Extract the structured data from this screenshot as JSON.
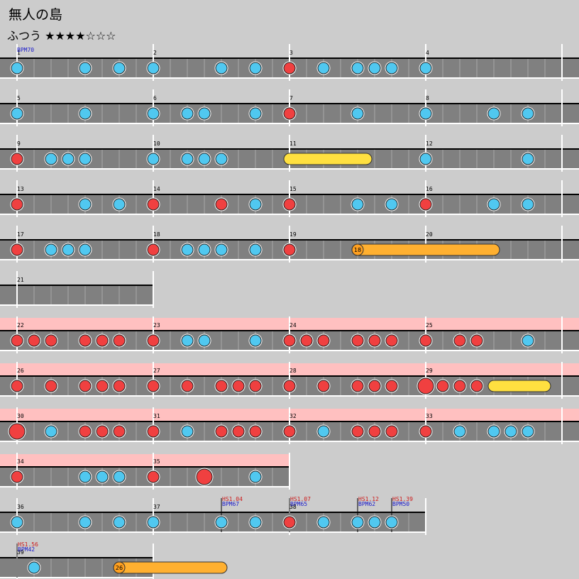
{
  "song": {
    "title": "無人の島",
    "difficulty": "ふつう",
    "stars_filled": 4,
    "stars_total": 7
  },
  "colors": {
    "background": "#cccccc",
    "lane": "#808080",
    "gogo_band": "#ffc0c0",
    "don": "#f04040",
    "ka": "#50c8f0",
    "drumroll": "#ffe040",
    "balloon": "#ffb030"
  },
  "rows": [
    {
      "measures": [
        "1",
        "2",
        "3",
        "4"
      ],
      "width": 4,
      "gogo": false,
      "notes": [
        {
          "b": 0,
          "t": "ka"
        },
        {
          "b": 4,
          "t": "ka"
        },
        {
          "b": 6,
          "t": "ka"
        },
        {
          "b": 8,
          "t": "ka"
        },
        {
          "b": 12,
          "t": "ka"
        },
        {
          "b": 14,
          "t": "ka"
        },
        {
          "b": 16,
          "t": "don"
        },
        {
          "b": 18,
          "t": "ka"
        },
        {
          "b": 20,
          "t": "ka"
        },
        {
          "b": 21,
          "t": "ka"
        },
        {
          "b": 22,
          "t": "ka"
        },
        {
          "b": 24,
          "t": "ka"
        }
      ]
    },
    {
      "measures": [
        "5",
        "6",
        "7",
        "8"
      ],
      "width": 4,
      "gogo": false,
      "notes": [
        {
          "b": 0,
          "t": "ka"
        },
        {
          "b": 4,
          "t": "ka"
        },
        {
          "b": 8,
          "t": "ka"
        },
        {
          "b": 10,
          "t": "ka"
        },
        {
          "b": 11,
          "t": "ka"
        },
        {
          "b": 14,
          "t": "ka"
        },
        {
          "b": 16,
          "t": "don"
        },
        {
          "b": 20,
          "t": "ka"
        },
        {
          "b": 24,
          "t": "ka"
        },
        {
          "b": 28,
          "t": "ka"
        },
        {
          "b": 30,
          "t": "ka"
        }
      ]
    },
    {
      "measures": [
        "9",
        "10",
        "11",
        "12"
      ],
      "width": 4,
      "gogo": false,
      "notes": [
        {
          "b": 0,
          "t": "don"
        },
        {
          "b": 2,
          "t": "ka"
        },
        {
          "b": 3,
          "t": "ka"
        },
        {
          "b": 4,
          "t": "ka"
        },
        {
          "b": 8,
          "t": "ka"
        },
        {
          "b": 10,
          "t": "ka"
        },
        {
          "b": 11,
          "t": "ka"
        },
        {
          "b": 12,
          "t": "ka"
        },
        {
          "b": 16,
          "end": 20.5,
          "t": "roll"
        },
        {
          "b": 24,
          "t": "ka"
        },
        {
          "b": 30,
          "t": "ka"
        }
      ]
    },
    {
      "measures": [
        "13",
        "14",
        "15",
        "16"
      ],
      "width": 4,
      "gogo": false,
      "notes": [
        {
          "b": 0,
          "t": "don"
        },
        {
          "b": 4,
          "t": "ka"
        },
        {
          "b": 6,
          "t": "ka"
        },
        {
          "b": 8,
          "t": "don"
        },
        {
          "b": 12,
          "t": "don"
        },
        {
          "b": 14,
          "t": "ka"
        },
        {
          "b": 16,
          "t": "don"
        },
        {
          "b": 20,
          "t": "ka"
        },
        {
          "b": 22,
          "t": "ka"
        },
        {
          "b": 24,
          "t": "don"
        },
        {
          "b": 28,
          "t": "ka"
        },
        {
          "b": 30,
          "t": "ka"
        }
      ]
    },
    {
      "measures": [
        "17",
        "18",
        "19",
        "20"
      ],
      "width": 4,
      "gogo": false,
      "notes": [
        {
          "b": 0,
          "t": "don"
        },
        {
          "b": 2,
          "t": "ka"
        },
        {
          "b": 3,
          "t": "ka"
        },
        {
          "b": 4,
          "t": "ka"
        },
        {
          "b": 8,
          "t": "don"
        },
        {
          "b": 10,
          "t": "ka"
        },
        {
          "b": 11,
          "t": "ka"
        },
        {
          "b": 12,
          "t": "ka"
        },
        {
          "b": 14,
          "t": "ka"
        },
        {
          "b": 16,
          "t": "don"
        },
        {
          "b": 20,
          "end": 28,
          "t": "balloon",
          "count": "18"
        }
      ]
    },
    {
      "measures": [
        "21"
      ],
      "width": 1,
      "gogo": false,
      "notes": []
    },
    {
      "measures": [
        "22",
        "23",
        "24",
        "25"
      ],
      "width": 4,
      "gogo": true,
      "notes": [
        {
          "b": 0,
          "t": "don"
        },
        {
          "b": 1,
          "t": "don"
        },
        {
          "b": 2,
          "t": "don"
        },
        {
          "b": 4,
          "t": "don"
        },
        {
          "b": 5,
          "t": "don"
        },
        {
          "b": 6,
          "t": "don"
        },
        {
          "b": 8,
          "t": "don"
        },
        {
          "b": 10,
          "t": "ka"
        },
        {
          "b": 11,
          "t": "ka"
        },
        {
          "b": 14,
          "t": "ka"
        },
        {
          "b": 16,
          "t": "don"
        },
        {
          "b": 17,
          "t": "don"
        },
        {
          "b": 18,
          "t": "don"
        },
        {
          "b": 20,
          "t": "don"
        },
        {
          "b": 21,
          "t": "don"
        },
        {
          "b": 22,
          "t": "don"
        },
        {
          "b": 24,
          "t": "don"
        },
        {
          "b": 26,
          "t": "don"
        },
        {
          "b": 27,
          "t": "don"
        },
        {
          "b": 30,
          "t": "ka"
        }
      ]
    },
    {
      "measures": [
        "26",
        "27",
        "28",
        "29"
      ],
      "width": 4,
      "gogo": true,
      "notes": [
        {
          "b": 0,
          "t": "don"
        },
        {
          "b": 2,
          "t": "don"
        },
        {
          "b": 4,
          "t": "don"
        },
        {
          "b": 5,
          "t": "don"
        },
        {
          "b": 6,
          "t": "don"
        },
        {
          "b": 8,
          "t": "don"
        },
        {
          "b": 10,
          "t": "don"
        },
        {
          "b": 12,
          "t": "don"
        },
        {
          "b": 13,
          "t": "don"
        },
        {
          "b": 14,
          "t": "don"
        },
        {
          "b": 16,
          "t": "don"
        },
        {
          "b": 18,
          "t": "don"
        },
        {
          "b": 20,
          "t": "don"
        },
        {
          "b": 21,
          "t": "don"
        },
        {
          "b": 22,
          "t": "don"
        },
        {
          "b": 24,
          "t": "DON"
        },
        {
          "b": 25,
          "t": "don"
        },
        {
          "b": 26,
          "t": "don"
        },
        {
          "b": 27,
          "t": "don"
        },
        {
          "b": 28,
          "end": 31,
          "t": "roll"
        }
      ]
    },
    {
      "measures": [
        "30",
        "31",
        "32",
        "33"
      ],
      "width": 4,
      "gogo": true,
      "notes": [
        {
          "b": 0,
          "t": "DON"
        },
        {
          "b": 2,
          "t": "ka"
        },
        {
          "b": 4,
          "t": "don"
        },
        {
          "b": 5,
          "t": "don"
        },
        {
          "b": 6,
          "t": "don"
        },
        {
          "b": 8,
          "t": "don"
        },
        {
          "b": 10,
          "t": "ka"
        },
        {
          "b": 12,
          "t": "don"
        },
        {
          "b": 13,
          "t": "don"
        },
        {
          "b": 14,
          "t": "don"
        },
        {
          "b": 16,
          "t": "don"
        },
        {
          "b": 18,
          "t": "ka"
        },
        {
          "b": 20,
          "t": "don"
        },
        {
          "b": 21,
          "t": "don"
        },
        {
          "b": 22,
          "t": "don"
        },
        {
          "b": 24,
          "t": "don"
        },
        {
          "b": 26,
          "t": "ka"
        },
        {
          "b": 28,
          "t": "ka"
        },
        {
          "b": 29,
          "t": "ka"
        },
        {
          "b": 30,
          "t": "ka"
        }
      ]
    },
    {
      "measures": [
        "34",
        "35"
      ],
      "width": 2,
      "gogo": true,
      "notes": [
        {
          "b": 0,
          "t": "don"
        },
        {
          "b": 4,
          "t": "ka"
        },
        {
          "b": 5,
          "t": "ka"
        },
        {
          "b": 6,
          "t": "ka"
        },
        {
          "b": 8,
          "t": "don"
        },
        {
          "b": 11,
          "t": "DON"
        },
        {
          "b": 14,
          "t": "ka"
        }
      ]
    },
    {
      "measures": [
        "36",
        "37",
        "38"
      ],
      "width": 3,
      "gogo": false,
      "events": [
        {
          "b": 12,
          "hs": "HS1.04",
          "bpm": "BPM67"
        },
        {
          "b": 16,
          "hs": "HS1.07",
          "bpm": "BPM65"
        },
        {
          "b": 20,
          "hs": "HS1.12",
          "bpm": "BPM62"
        },
        {
          "b": 22,
          "hs": "HS1.39",
          "bpm": "BPM50"
        }
      ],
      "notes": [
        {
          "b": 0,
          "t": "ka"
        },
        {
          "b": 4,
          "t": "ka"
        },
        {
          "b": 6,
          "t": "ka"
        },
        {
          "b": 8,
          "t": "ka"
        },
        {
          "b": 12,
          "t": "ka"
        },
        {
          "b": 14,
          "t": "ka"
        },
        {
          "b": 16,
          "t": "don"
        },
        {
          "b": 18,
          "t": "ka"
        },
        {
          "b": 20,
          "t": "ka"
        },
        {
          "b": 21,
          "t": "ka"
        },
        {
          "b": 22,
          "t": "ka"
        }
      ]
    },
    {
      "measures": [
        "39"
      ],
      "width": 1,
      "gogo": false,
      "events": [
        {
          "b": 0,
          "hs": "HS1.56",
          "bpm": "BPM42"
        }
      ],
      "notes": [
        {
          "b": 1,
          "t": "ka"
        },
        {
          "b": 6,
          "end": 12,
          "t": "balloon",
          "count": "26"
        }
      ]
    }
  ],
  "first_bpm": "BPM70"
}
